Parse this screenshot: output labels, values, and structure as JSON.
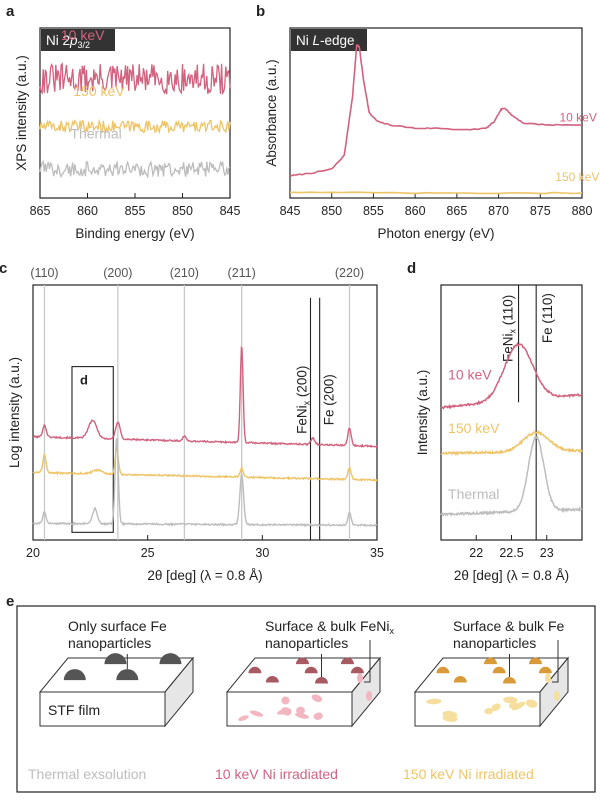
{
  "colors": {
    "kev10": "#d1637f",
    "kev150": "#eec467",
    "thermal": "#bdbdbd",
    "ref_line": "#c8c8c8",
    "axis": "#222222",
    "badge_bg": "#333333",
    "badge_text": "#ffffff",
    "particle_dark": "#555555",
    "particle_pink": "#a85a63",
    "particle_orange": "#d99a3a",
    "embed_pink": "#f2b6c1",
    "embed_yellow": "#f6df9e"
  },
  "chart_data": [
    {
      "id": "a",
      "type": "line",
      "panel_label": "a",
      "badge": {
        "main": "Ni 2",
        "italic": "p",
        "sub": "3/2"
      },
      "xlabel": "Binding energy (eV)",
      "ylabel": "XPS intensity (a.u.)",
      "xlim": [
        865,
        845
      ],
      "x_reversed": true,
      "ylim": [
        0,
        1
      ],
      "xticks": [
        865,
        860,
        855,
        850,
        845
      ],
      "grid": false,
      "series": [
        {
          "name": "10 keV",
          "color": "kev10",
          "baseline": 0.7,
          "noise": 0.09,
          "label_x": 862.8,
          "label_y": 0.93
        },
        {
          "name": "150 keV",
          "color": "kev150",
          "baseline": 0.42,
          "noise": 0.035,
          "label_x": 861.5,
          "label_y": 0.6
        },
        {
          "name": "Thermal",
          "color": "thermal",
          "baseline": 0.17,
          "noise": 0.045,
          "label_x": 861.8,
          "label_y": 0.35
        }
      ]
    },
    {
      "id": "b",
      "type": "line",
      "panel_label": "b",
      "badge": {
        "main": "Ni ",
        "italic": "L",
        "rest": "-edge"
      },
      "xlabel": "Photon energy (eV)",
      "ylabel": "Absorbance (a.u.)",
      "xlim": [
        845,
        880
      ],
      "ylim": [
        0,
        1
      ],
      "xticks": [
        845,
        850,
        855,
        860,
        865,
        870,
        875,
        880
      ],
      "grid": false,
      "series": [
        {
          "name": "10 keV",
          "color": "kev10",
          "label_x": 877.3,
          "label_y": 0.45,
          "points": [
            [
              845,
              0.13
            ],
            [
              848,
              0.15
            ],
            [
              850,
              0.17
            ],
            [
              851.5,
              0.25
            ],
            [
              852.5,
              0.6
            ],
            [
              853,
              0.9
            ],
            [
              853.3,
              0.89
            ],
            [
              853.8,
              0.7
            ],
            [
              854.5,
              0.5
            ],
            [
              855.5,
              0.45
            ],
            [
              857,
              0.43
            ],
            [
              860,
              0.41
            ],
            [
              863,
              0.41
            ],
            [
              866,
              0.4
            ],
            [
              868.5,
              0.41
            ],
            [
              869.5,
              0.45
            ],
            [
              870.3,
              0.52
            ],
            [
              870.8,
              0.53
            ],
            [
              871.5,
              0.49
            ],
            [
              873,
              0.44
            ],
            [
              876,
              0.43
            ],
            [
              880,
              0.43
            ]
          ]
        },
        {
          "name": "150 keV",
          "color": "kev150",
          "label_x": 876.8,
          "label_y": 0.1,
          "points": [
            [
              845,
              0.035
            ],
            [
              855,
              0.03
            ],
            [
              865,
              0.028
            ],
            [
              875,
              0.028
            ],
            [
              880,
              0.03
            ]
          ]
        }
      ]
    },
    {
      "id": "c",
      "type": "line",
      "panel_label": "c",
      "xlabel": "2θ [deg] (λ = 0.8 Å)",
      "ylabel": "Log intensity (a.u.)",
      "xlim": [
        20,
        35
      ],
      "ylim": [
        0,
        1
      ],
      "xticks": [
        20,
        25,
        30,
        35
      ],
      "ref_lines": [
        {
          "x": 20.5,
          "label": "(110)"
        },
        {
          "x": 23.7,
          "label": "(200)"
        },
        {
          "x": 26.6,
          "label": "(210)"
        },
        {
          "x": 29.1,
          "label": "(211)"
        },
        {
          "x": 33.8,
          "label": "(220)"
        }
      ],
      "phase_lines": [
        {
          "x": 32.1,
          "main": "FeNi",
          "sub": "x",
          "hkl": " (200)",
          "label_y": 0.55
        },
        {
          "x": 32.5,
          "main": "Fe",
          "sub": "",
          "hkl": " (200)",
          "label_y": 0.55
        }
      ],
      "inset_box": {
        "label": "d",
        "x0": 21.7,
        "x1": 23.5,
        "y0": 0.03,
        "y1": 0.68
      },
      "series": [
        {
          "name": "10 keV",
          "color": "kev10",
          "baseline": 0.405,
          "slope": -0.0025,
          "peaks": [
            [
              20.5,
              0.045,
              0.08
            ],
            [
              22.6,
              0.07,
              0.18
            ],
            [
              23.7,
              0.065,
              0.1
            ],
            [
              26.6,
              0.02,
              0.07
            ],
            [
              29.1,
              0.38,
              0.06
            ],
            [
              32.2,
              0.025,
              0.09
            ],
            [
              33.8,
              0.07,
              0.07
            ]
          ]
        },
        {
          "name": "150 keV",
          "color": "kev150",
          "baseline": 0.265,
          "slope": -0.002,
          "peaks": [
            [
              20.5,
              0.07,
              0.07
            ],
            [
              22.8,
              0.015,
              0.2
            ],
            [
              23.65,
              0.1,
              0.07
            ],
            [
              29.1,
              0.035,
              0.07
            ],
            [
              33.8,
              0.045,
              0.07
            ]
          ]
        },
        {
          "name": "Thermal",
          "color": "thermal",
          "baseline": 0.065,
          "slope": -0.0005,
          "peaks": [
            [
              20.5,
              0.045,
              0.07
            ],
            [
              22.7,
              0.06,
              0.1
            ],
            [
              23.65,
              0.34,
              0.07
            ],
            [
              29.1,
              0.2,
              0.08
            ],
            [
              33.8,
              0.05,
              0.07
            ]
          ]
        }
      ]
    },
    {
      "id": "d",
      "type": "line",
      "panel_label": "d",
      "xlabel": "2θ [deg] (λ = 0.8 Å)",
      "ylabel": "Intensity (a.u.)",
      "xlim": [
        21.5,
        23.5
      ],
      "ylim": [
        0,
        1
      ],
      "xticks": [
        22,
        22.5,
        23
      ],
      "phase_lines": [
        {
          "x": 22.6,
          "main": "FeNi",
          "sub": "x",
          "hkl": " (110)",
          "y_top": 1.0,
          "y_bottom": 0.54
        },
        {
          "x": 22.85,
          "main": "Fe",
          "sub": "",
          "hkl": " (110)",
          "y_top": 1.0,
          "y_bottom": 0.0
        }
      ],
      "series": [
        {
          "name": "10 keV",
          "color": "kev10",
          "baseline": 0.52,
          "slope": 0.025,
          "label_x": 21.6,
          "label_y": 0.63,
          "peaks": [
            [
              22.6,
              0.22,
              0.2
            ]
          ]
        },
        {
          "name": "150 keV",
          "color": "kev150",
          "baseline": 0.34,
          "slope": 0.005,
          "label_x": 21.6,
          "label_y": 0.42,
          "peaks": [
            [
              22.85,
              0.075,
              0.18
            ]
          ]
        },
        {
          "name": "Thermal",
          "color": "thermal",
          "baseline": 0.1,
          "slope": 0.01,
          "label_x": 21.6,
          "label_y": 0.16,
          "peaks": [
            [
              22.85,
              0.29,
              0.11
            ]
          ]
        }
      ]
    }
  ],
  "panel_e": {
    "panel_label": "e",
    "schematics": [
      {
        "caption": "Thermal exsolution",
        "caption_color": "thermal",
        "title_lines": [
          "Only surface Fe",
          "nanoparticles"
        ],
        "film_label": "STF film",
        "particle_color": "particle_dark",
        "embed_color": ""
      },
      {
        "caption": "10 keV Ni irradiated",
        "caption_color": "kev10",
        "title_lines": [
          "Surface & bulk FeNi",
          "nanoparticles"
        ],
        "title_sub": "x",
        "film_label": "",
        "particle_color": "particle_pink",
        "embed_color": "embed_pink"
      },
      {
        "caption": "150 keV Ni irradiated",
        "caption_color": "kev150",
        "title_lines": [
          "Surface & bulk Fe",
          "nanoparticles"
        ],
        "film_label": "",
        "particle_color": "particle_orange",
        "embed_color": "embed_yellow"
      }
    ]
  }
}
